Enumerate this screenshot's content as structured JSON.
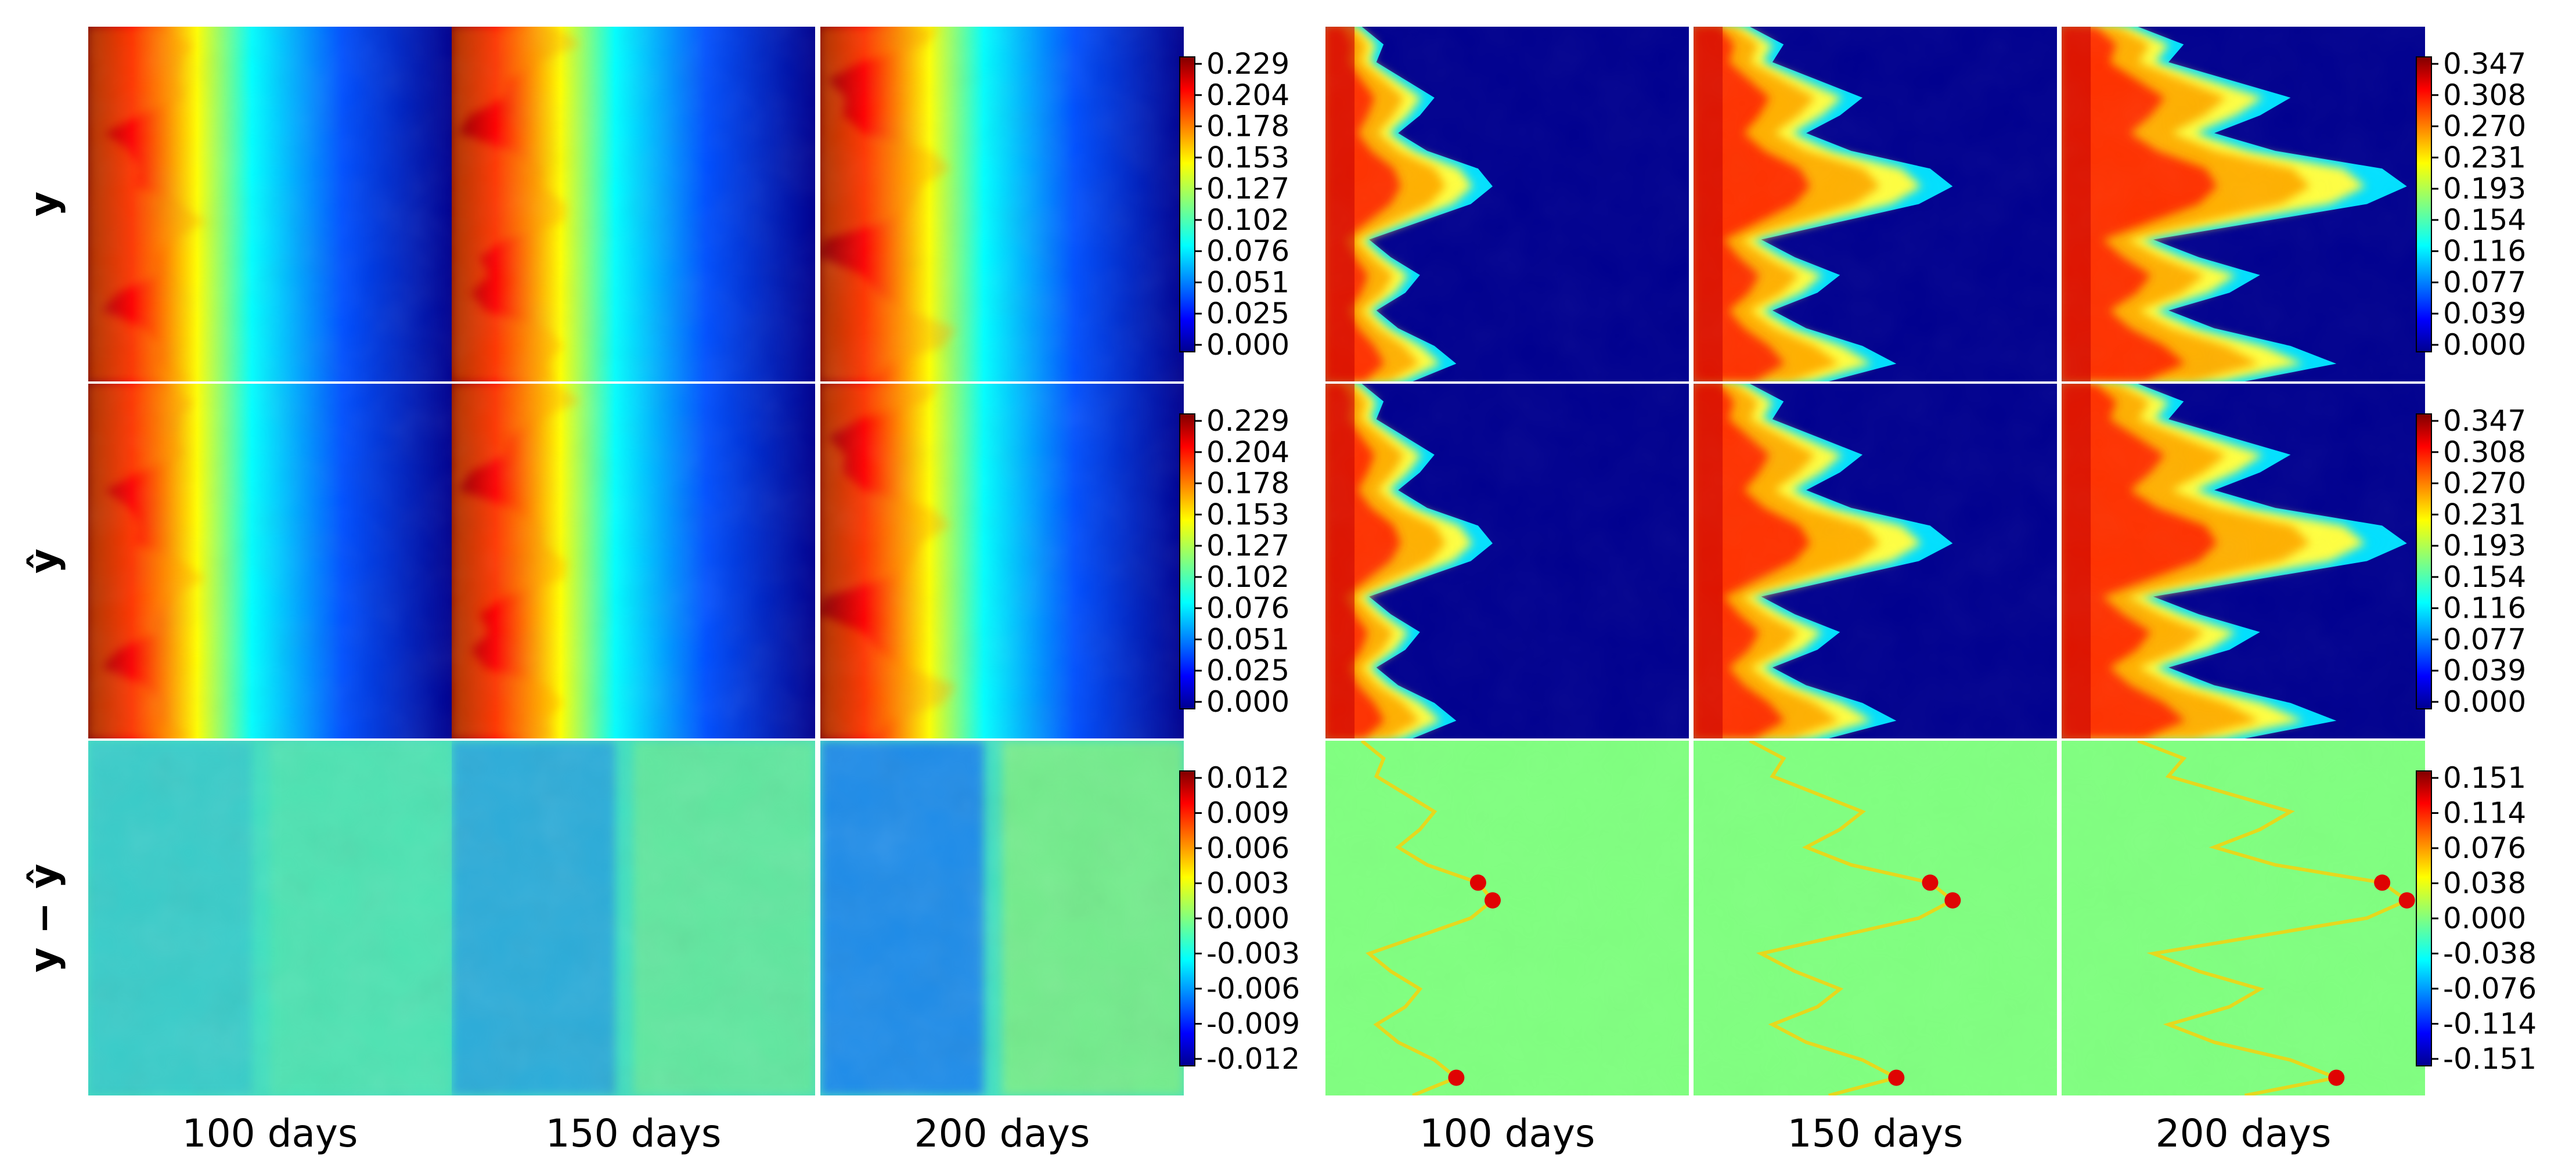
{
  "figure": {
    "row_labels": [
      "y",
      "ŷ",
      "y − ŷ"
    ],
    "col_labels": [
      "100 days",
      "150 days",
      "200 days",
      "100 days",
      "150 days",
      "200 days"
    ]
  },
  "chart_data": [
    {
      "type": "heatmap",
      "title": "",
      "panel_group": "left",
      "description": "Field maps (pressure-like) at three times; rows: ground truth y, prediction ŷ, error y − ŷ",
      "colormap": "jet",
      "times": [
        "100 days",
        "150 days",
        "200 days"
      ],
      "rows": [
        {
          "label": "y",
          "colorbar_ticks": [
            "0.229",
            "0.204",
            "0.178",
            "0.153",
            "0.127",
            "0.102",
            "0.076",
            "0.051",
            "0.025",
            "0.000"
          ],
          "range": [
            0.0,
            0.229
          ]
        },
        {
          "label": "ŷ",
          "colorbar_ticks": [
            "0.229",
            "0.204",
            "0.178",
            "0.153",
            "0.127",
            "0.102",
            "0.076",
            "0.051",
            "0.025",
            "0.000"
          ],
          "range": [
            0.0,
            0.229
          ]
        },
        {
          "label": "y − ŷ",
          "colorbar_ticks": [
            "0.012",
            "0.009",
            "0.006",
            "0.003",
            "0.000",
            "-0.003",
            "-0.006",
            "-0.009",
            "-0.012"
          ],
          "range": [
            -0.012,
            0.012
          ]
        }
      ]
    },
    {
      "type": "heatmap",
      "title": "",
      "panel_group": "right",
      "description": "Saturation-like plume maps at three times; rows: ground truth y, prediction ŷ, error y − ŷ",
      "colormap": "jet",
      "times": [
        "100 days",
        "150 days",
        "200 days"
      ],
      "rows": [
        {
          "label": "y",
          "colorbar_ticks": [
            "0.347",
            "0.308",
            "0.270",
            "0.231",
            "0.193",
            "0.154",
            "0.116",
            "0.077",
            "0.039",
            "0.000"
          ],
          "range": [
            0.0,
            0.347
          ]
        },
        {
          "label": "ŷ",
          "colorbar_ticks": [
            "0.347",
            "0.308",
            "0.270",
            "0.231",
            "0.193",
            "0.154",
            "0.116",
            "0.077",
            "0.039",
            "0.000"
          ],
          "range": [
            0.0,
            0.347
          ]
        },
        {
          "label": "y − ŷ",
          "colorbar_ticks": [
            "0.151",
            "0.114",
            "0.076",
            "0.038",
            "0.000",
            "-0.038",
            "-0.076",
            "-0.114",
            "-0.151"
          ],
          "range": [
            -0.151,
            0.151
          ]
        }
      ]
    }
  ]
}
